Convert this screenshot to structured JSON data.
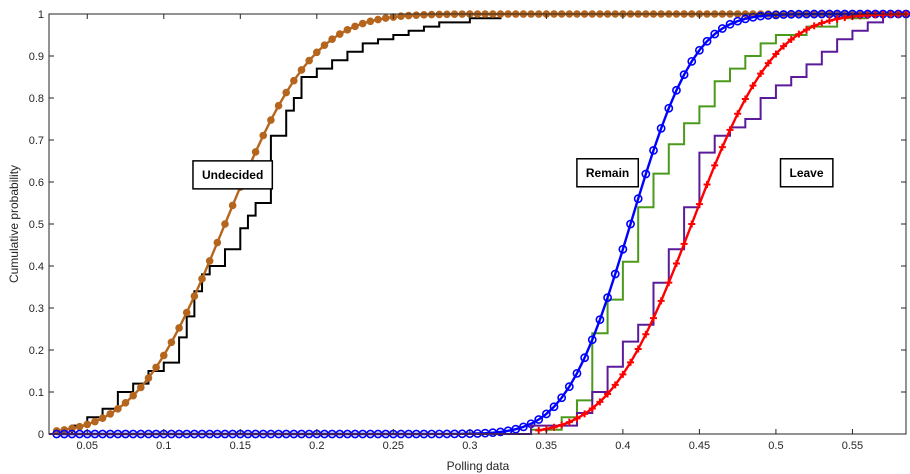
{
  "chart_data": {
    "type": "line",
    "xlabel": "Polling data",
    "ylabel": "Cumulative probability",
    "xlim": [
      0.025,
      0.585
    ],
    "ylim": [
      0,
      1
    ],
    "xticks": [
      "0.05",
      "0.1",
      "0.15",
      "0.2",
      "0.25",
      "0.3",
      "0.35",
      "0.4",
      "0.45",
      "0.5",
      "0.55"
    ],
    "yticks": [
      "0",
      "0.1",
      "0.2",
      "0.3",
      "0.4",
      "0.5",
      "0.6",
      "0.7",
      "0.8",
      "0.9",
      "1"
    ],
    "grid": false,
    "annotations": [
      {
        "text": "Undecided",
        "x": 0.145,
        "y": 0.615
      },
      {
        "text": "Remain",
        "x": 0.39,
        "y": 0.62
      },
      {
        "text": "Leave",
        "x": 0.52,
        "y": 0.62
      }
    ],
    "series": [
      {
        "kind": "empirical-step",
        "color": "#000000",
        "x": [
          0.025,
          0.04,
          0.05,
          0.06,
          0.07,
          0.08,
          0.09,
          0.1,
          0.11,
          0.115,
          0.12,
          0.125,
          0.13,
          0.14,
          0.15,
          0.155,
          0.16,
          0.17,
          0.18,
          0.185,
          0.19,
          0.2,
          0.21,
          0.22,
          0.23,
          0.24,
          0.25,
          0.26,
          0.27,
          0.28,
          0.3,
          0.32
        ],
        "values": [
          0.0,
          0.02,
          0.04,
          0.06,
          0.1,
          0.12,
          0.15,
          0.17,
          0.23,
          0.28,
          0.34,
          0.38,
          0.4,
          0.44,
          0.49,
          0.52,
          0.55,
          0.71,
          0.77,
          0.8,
          0.85,
          0.87,
          0.89,
          0.91,
          0.93,
          0.94,
          0.95,
          0.96,
          0.97,
          0.98,
          0.99,
          1.0
        ]
      },
      {
        "kind": "fitted-cdf",
        "color": "#b5651d",
        "marker": "filled-circle",
        "mean": 0.14,
        "sd": 0.045,
        "x_start": 0.03,
        "x_end": 0.585,
        "step": 0.005
      },
      {
        "kind": "empirical-step",
        "color": "#4b9a1c",
        "x": [
          0.025,
          0.34,
          0.36,
          0.37,
          0.38,
          0.39,
          0.4,
          0.41,
          0.42,
          0.43,
          0.44,
          0.45,
          0.46,
          0.47,
          0.48,
          0.49,
          0.5,
          0.52,
          0.54,
          0.56
        ],
        "values": [
          0.0,
          0.01,
          0.04,
          0.08,
          0.24,
          0.32,
          0.41,
          0.54,
          0.62,
          0.69,
          0.74,
          0.78,
          0.84,
          0.87,
          0.9,
          0.93,
          0.95,
          0.97,
          0.99,
          1.0
        ]
      },
      {
        "kind": "fitted-cdf",
        "color": "#0000ff",
        "marker": "open-circle",
        "mean": 0.405,
        "sd": 0.033,
        "x_start": 0.03,
        "x_end": 0.585,
        "step": 0.005
      },
      {
        "kind": "empirical-step",
        "color": "#5b1a9a",
        "x": [
          0.025,
          0.34,
          0.37,
          0.38,
          0.39,
          0.4,
          0.41,
          0.42,
          0.43,
          0.44,
          0.45,
          0.46,
          0.47,
          0.48,
          0.49,
          0.5,
          0.51,
          0.52,
          0.53,
          0.54,
          0.55,
          0.56,
          0.57
        ],
        "values": [
          0.0,
          0.02,
          0.05,
          0.1,
          0.16,
          0.22,
          0.26,
          0.36,
          0.44,
          0.54,
          0.67,
          0.71,
          0.73,
          0.75,
          0.8,
          0.83,
          0.85,
          0.88,
          0.91,
          0.94,
          0.96,
          0.98,
          1.0
        ]
      },
      {
        "kind": "fitted-cdf",
        "color": "#ff0000",
        "marker": "plus",
        "mean": 0.445,
        "sd": 0.042,
        "x_start": 0.345,
        "x_end": 0.585,
        "step": 0.005
      }
    ]
  }
}
